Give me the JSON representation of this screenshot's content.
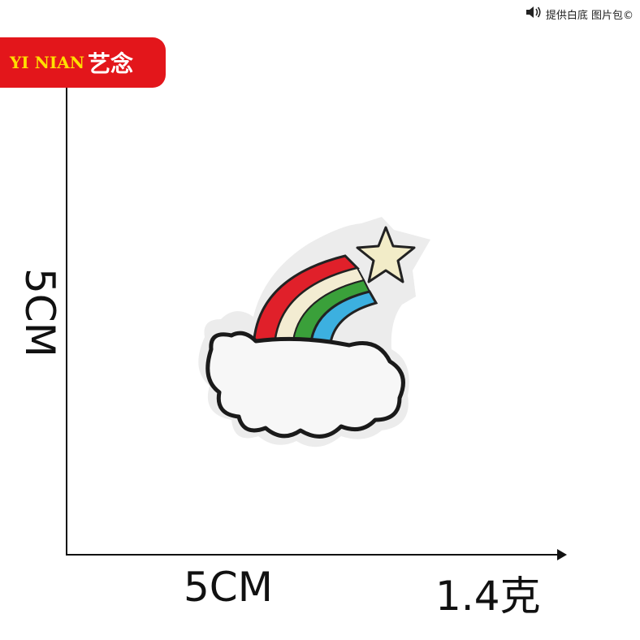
{
  "watermark": {
    "icon": "speaker-icon",
    "text": "提供白底 图片包©"
  },
  "brand": {
    "en": "YI NIAN",
    "cn": "艺念",
    "bg_color": "#e3161b",
    "en_color": "#ffde00"
  },
  "dimensions": {
    "height_label": "5CM",
    "width_label": "5CM",
    "weight_label": "1.4克"
  },
  "patch": {
    "icon": "rainbow-cloud-star-patch",
    "colors": [
      "#e0202a",
      "#f3ecd2",
      "#3aa03a",
      "#3cb0e0",
      "#f2ecc8"
    ]
  }
}
